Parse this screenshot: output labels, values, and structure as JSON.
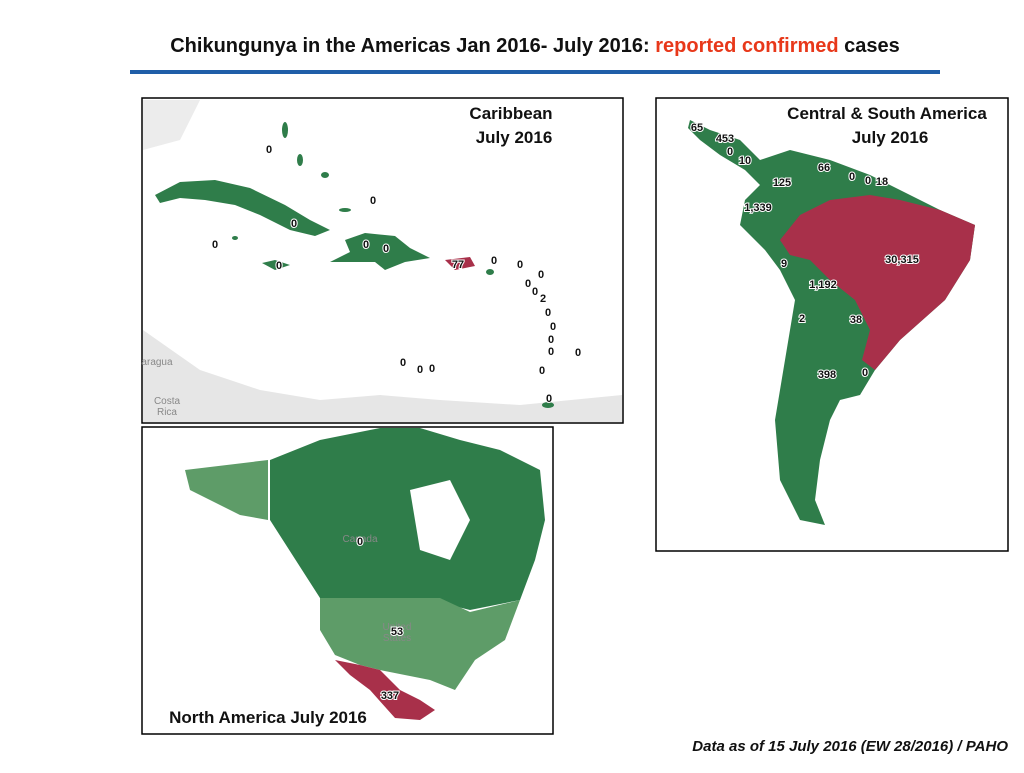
{
  "title": {
    "prefix": "Chikungunya in the Americas Jan 2016- July 2016: ",
    "highlight": "reported confirmed",
    "suffix": " cases"
  },
  "panels": [
    {
      "title": [
        "Caribbean",
        "July 2016"
      ],
      "places": [
        "aragua",
        "Costa",
        "Rica"
      ],
      "labels": [
        "0",
        "0",
        "0",
        "0",
        "0",
        "0",
        "0",
        "77",
        "0",
        "0",
        "0",
        "0",
        "0",
        "2",
        "0",
        "0",
        "0",
        "0",
        "0",
        "0",
        "0",
        "0",
        "0",
        "0"
      ]
    },
    {
      "title": [
        "Central & South America",
        "July 2016"
      ],
      "places": [],
      "labels": [
        "65",
        "453",
        "0",
        "10",
        "66",
        "0",
        "0",
        "18",
        "125",
        "1,339",
        "30,315",
        "9",
        "1,192",
        "2",
        "38",
        "398",
        "0"
      ]
    },
    {
      "title": [
        "North America July 2016"
      ],
      "places": [
        "Canada",
        "United",
        "States"
      ],
      "labels": [
        "0",
        "53",
        "337"
      ]
    }
  ],
  "footnote": "Data as of 15 July 2016 (EW 28/2016) / PAHO"
}
